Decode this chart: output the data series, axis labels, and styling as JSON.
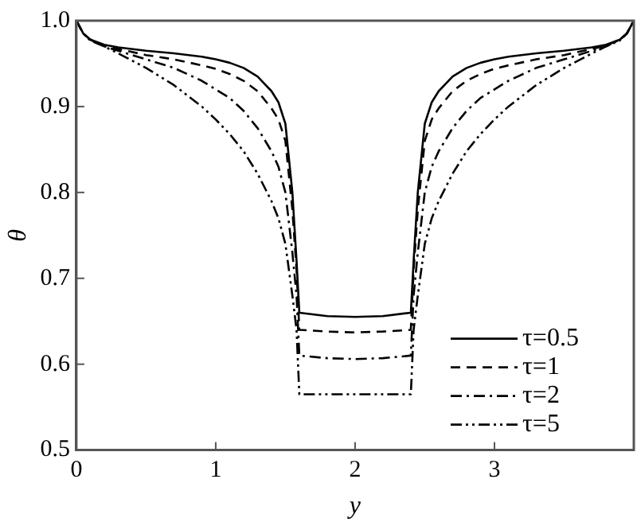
{
  "chart_data": {
    "type": "line",
    "xlabel": "y",
    "ylabel": "θ",
    "xlim": [
      0,
      4
    ],
    "xticks": [
      0,
      1,
      2,
      3
    ],
    "ylim": [
      0.5,
      1
    ],
    "yticks": [
      0.5,
      0.6,
      0.7,
      0.8,
      0.9,
      {
        "value": 1,
        "label": "1.0"
      }
    ],
    "grid": false,
    "legend": "bottom right",
    "marker": "none",
    "x": [
      0,
      0.05,
      0.1,
      0.2,
      0.3,
      0.5,
      0.7,
      0.9,
      1.0,
      1.1,
      1.2,
      1.3,
      1.4,
      1.45,
      1.5,
      1.55,
      1.58,
      1.6,
      1.8,
      2.0,
      2.2,
      2.4,
      2.42,
      2.45,
      2.5,
      2.55,
      2.6,
      2.7,
      2.8,
      2.9,
      3.0,
      3.1,
      3.3,
      3.5,
      3.7,
      3.8,
      3.9,
      3.95,
      4.0
    ],
    "series": [
      {
        "name": "τ=0.5",
        "color": "#000000",
        "line_style": "solid",
        "values": [
          1.0,
          0.985,
          0.978,
          0.972,
          0.969,
          0.965,
          0.962,
          0.958,
          0.955,
          0.951,
          0.945,
          0.935,
          0.918,
          0.905,
          0.88,
          0.8,
          0.72,
          0.66,
          0.656,
          0.655,
          0.656,
          0.66,
          0.72,
          0.8,
          0.88,
          0.905,
          0.918,
          0.935,
          0.945,
          0.951,
          0.955,
          0.958,
          0.962,
          0.965,
          0.969,
          0.972,
          0.978,
          0.985,
          1.0
        ]
      },
      {
        "name": "τ=1",
        "color": "#000000",
        "line_style": "dashed",
        "values": [
          1.0,
          0.985,
          0.978,
          0.971,
          0.967,
          0.96,
          0.955,
          0.948,
          0.944,
          0.938,
          0.93,
          0.918,
          0.898,
          0.885,
          0.86,
          0.78,
          0.71,
          0.64,
          0.638,
          0.637,
          0.638,
          0.64,
          0.71,
          0.78,
          0.86,
          0.885,
          0.898,
          0.918,
          0.93,
          0.938,
          0.944,
          0.948,
          0.955,
          0.96,
          0.967,
          0.971,
          0.978,
          0.985,
          1.0
        ]
      },
      {
        "name": "τ=2",
        "color": "#000000",
        "line_style": "dashdot",
        "values": [
          1.0,
          0.985,
          0.978,
          0.97,
          0.965,
          0.955,
          0.945,
          0.93,
          0.92,
          0.91,
          0.895,
          0.875,
          0.848,
          0.83,
          0.8,
          0.73,
          0.68,
          0.61,
          0.607,
          0.606,
          0.607,
          0.61,
          0.68,
          0.73,
          0.8,
          0.83,
          0.848,
          0.875,
          0.895,
          0.91,
          0.92,
          0.93,
          0.945,
          0.955,
          0.965,
          0.97,
          0.978,
          0.985,
          1.0
        ]
      },
      {
        "name": "τ=5",
        "color": "#000000",
        "line_style": "dashdotdot",
        "values": [
          1.0,
          0.985,
          0.977,
          0.97,
          0.962,
          0.945,
          0.925,
          0.9,
          0.885,
          0.868,
          0.848,
          0.822,
          0.79,
          0.77,
          0.74,
          0.68,
          0.64,
          0.565,
          0.565,
          0.565,
          0.565,
          0.565,
          0.64,
          0.68,
          0.74,
          0.77,
          0.79,
          0.822,
          0.848,
          0.868,
          0.885,
          0.9,
          0.925,
          0.945,
          0.962,
          0.97,
          0.977,
          0.985,
          1.0
        ]
      }
    ]
  }
}
